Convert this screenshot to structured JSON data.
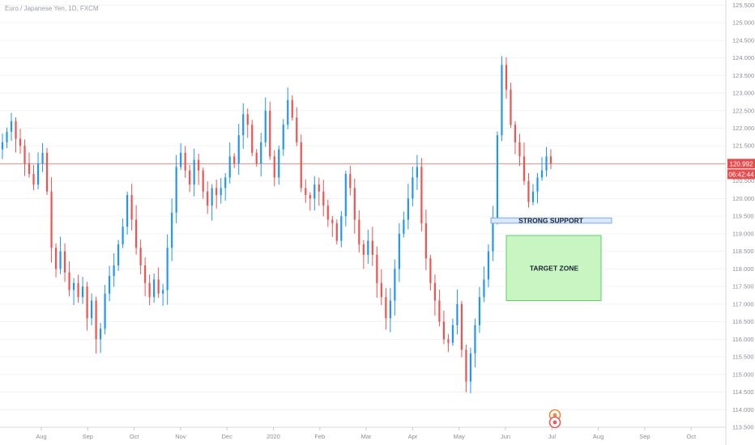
{
  "chart_data": {
    "type": "candlestick",
    "title": "Euro / Japanese Yen, 1D, FXCM",
    "ylim": [
      113.5,
      125.6
    ],
    "yticks": [
      "125.500",
      "125.000",
      "124.500",
      "124.000",
      "123.500",
      "123.000",
      "122.500",
      "122.000",
      "121.500",
      "121.000",
      "120.500",
      "120.000",
      "119.500",
      "119.000",
      "118.500",
      "118.000",
      "117.500",
      "117.000",
      "116.500",
      "116.000",
      "115.500",
      "115.000",
      "114.500",
      "114.000",
      "113.500"
    ],
    "xticks": [
      "Aug",
      "Sep",
      "Oct",
      "Nov",
      "Dec",
      "2020",
      "Feb",
      "Mar",
      "Apr",
      "May",
      "Jun",
      "Jul",
      "Aug",
      "Sep",
      "Oct"
    ],
    "last_price": "120.992",
    "countdown": "06:42:44",
    "horizontal_line": 120.992,
    "annotations": [
      {
        "label": "STRONG SUPPORT",
        "y_from": 119.3,
        "y_to": 119.45
      },
      {
        "label": "TARGET ZONE",
        "y_from": 117.1,
        "y_to": 118.95
      }
    ],
    "series": [
      {
        "values": [
          121.6,
          121.9,
          122.2,
          121.7,
          121.5,
          121.0,
          120.7,
          120.4,
          121.0,
          121.3,
          120.2,
          118.6,
          118.0,
          118.5,
          117.9,
          117.4,
          117.6,
          117.2,
          117.5,
          116.6,
          117.1,
          116.0,
          116.3,
          117.3,
          117.8,
          118.1,
          118.7,
          119.2,
          120.1,
          119.4,
          118.6,
          118.1,
          117.6,
          117.2,
          117.7,
          117.3,
          117.4,
          118.6,
          119.6,
          120.9,
          121.3,
          120.8,
          120.4,
          121.1,
          120.8,
          120.2,
          119.8,
          120.3,
          120.1,
          120.3,
          120.6,
          121.2,
          121.0,
          121.8,
          122.4,
          122.1,
          121.3,
          121.0,
          121.6,
          122.5,
          121.2,
          120.6,
          121.4,
          122.1,
          122.8,
          122.3,
          121.6,
          120.3,
          120.1,
          120.0,
          120.4,
          120.2,
          119.8,
          119.4,
          119.3,
          118.8,
          119.5,
          120.7,
          120.3,
          119.4,
          118.7,
          118.4,
          118.8,
          118.4,
          117.6,
          117.2,
          116.6,
          117.1,
          118.0,
          119.0,
          119.4,
          120.0,
          120.6,
          120.9,
          119.3,
          118.3,
          117.6,
          117.1,
          116.5,
          116.0,
          115.9,
          116.4,
          117.0,
          115.7,
          114.8,
          115.6,
          116.4,
          117.2,
          117.7,
          118.5,
          119.4,
          121.8,
          123.8,
          123.1,
          122.1,
          121.6,
          121.2,
          120.5,
          119.9,
          120.2,
          120.6,
          120.8,
          121.2,
          121.0
        ]
      }
    ]
  }
}
